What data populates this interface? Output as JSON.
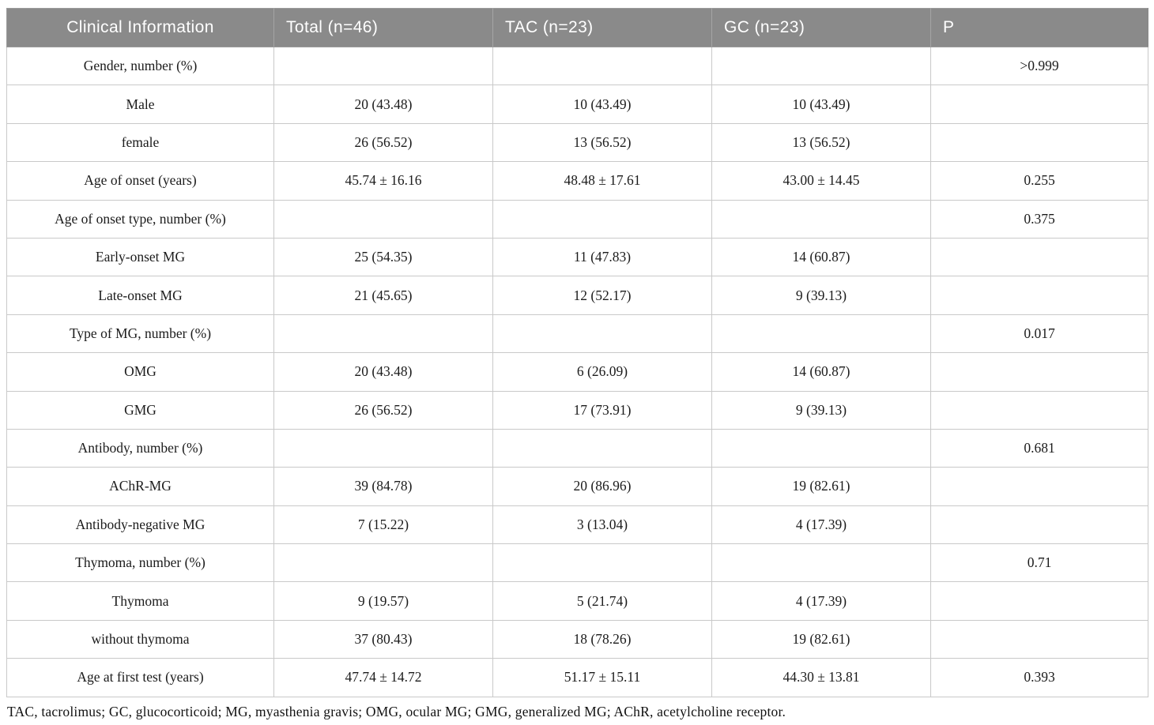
{
  "table": {
    "headers": [
      "Clinical Information",
      "Total (n=46)",
      "TAC (n=23)",
      "GC (n=23)",
      "P"
    ],
    "rows": [
      {
        "label": "Gender, number (%)",
        "total": "",
        "tac": "",
        "gc": "",
        "p": ">0.999"
      },
      {
        "label": "Male",
        "total": "20 (43.48)",
        "tac": "10 (43.49)",
        "gc": "10 (43.49)",
        "p": ""
      },
      {
        "label": "female",
        "total": "26 (56.52)",
        "tac": "13 (56.52)",
        "gc": "13 (56.52)",
        "p": ""
      },
      {
        "label": "Age of onset (years)",
        "total": "45.74 ± 16.16",
        "tac": "48.48 ± 17.61",
        "gc": "43.00 ± 14.45",
        "p": "0.255"
      },
      {
        "label": "Age of onset type, number (%)",
        "total": "",
        "tac": "",
        "gc": "",
        "p": "0.375"
      },
      {
        "label": "Early-onset MG",
        "total": "25 (54.35)",
        "tac": "11 (47.83)",
        "gc": "14 (60.87)",
        "p": ""
      },
      {
        "label": "Late-onset MG",
        "total": "21 (45.65)",
        "tac": "12 (52.17)",
        "gc": "9 (39.13)",
        "p": ""
      },
      {
        "label": "Type of MG, number (%)",
        "total": "",
        "tac": "",
        "gc": "",
        "p": "0.017"
      },
      {
        "label": "OMG",
        "total": "20 (43.48)",
        "tac": "6 (26.09)",
        "gc": "14 (60.87)",
        "p": ""
      },
      {
        "label": "GMG",
        "total": "26 (56.52)",
        "tac": "17 (73.91)",
        "gc": "9 (39.13)",
        "p": ""
      },
      {
        "label": "Antibody, number (%)",
        "total": "",
        "tac": "",
        "gc": "",
        "p": "0.681"
      },
      {
        "label": "AChR-MG",
        "total": "39 (84.78)",
        "tac": "20 (86.96)",
        "gc": "19 (82.61)",
        "p": ""
      },
      {
        "label": "Antibody-negative MG",
        "total": "7 (15.22)",
        "tac": "3 (13.04)",
        "gc": "4 (17.39)",
        "p": ""
      },
      {
        "label": "Thymoma, number (%)",
        "total": "",
        "tac": "",
        "gc": "",
        "p": "0.71"
      },
      {
        "label": "Thymoma",
        "total": "9 (19.57)",
        "tac": "5 (21.74)",
        "gc": "4 (17.39)",
        "p": ""
      },
      {
        "label": "without thymoma",
        "total": "37 (80.43)",
        "tac": "18 (78.26)",
        "gc": "19 (82.61)",
        "p": ""
      },
      {
        "label": "Age at first test (years)",
        "total": "47.74 ± 14.72",
        "tac": "51.17 ± 15.11",
        "gc": "44.30 ± 13.81",
        "p": "0.393"
      }
    ],
    "footnote": "TAC, tacrolimus; GC, glucocorticoid; MG, myasthenia gravis; OMG, ocular MG; GMG, generalized MG; AChR, acetylcholine receptor."
  },
  "colors": {
    "header_bg": "#8a8a8a",
    "header_text": "#ffffff",
    "header_divider": "#a5a5a5",
    "inner_border": "#c9c9c9",
    "outer_border": "#9b9b9b",
    "body_text": "#1b1b1b"
  }
}
